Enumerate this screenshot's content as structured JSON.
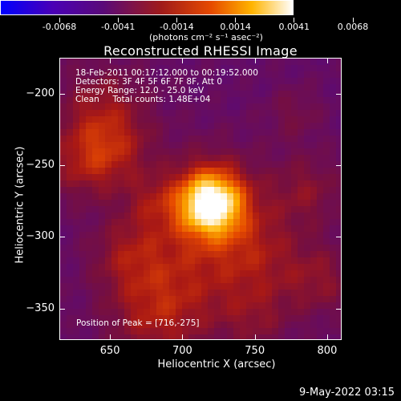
{
  "colorbar": {
    "tick_labels": [
      "-0.0068",
      "-0.0041",
      "-0.0014",
      "0.0014",
      "0.0041",
      "0.0068"
    ],
    "units_label": "(photons cm⁻² s⁻¹ asec⁻²)"
  },
  "chart_data": {
    "type": "heatmap",
    "title": "Reconstructed RHESSI Image",
    "xlabel": "Heliocentric X (arcsec)",
    "ylabel": "Heliocentric Y (arcsec)",
    "x_ticks": [
      "650",
      "700",
      "750",
      "800"
    ],
    "y_ticks": [
      "-200",
      "-250",
      "-300",
      "-350"
    ],
    "xlim": [
      615,
      810
    ],
    "ylim": [
      -372,
      -175
    ],
    "color_range": [
      -0.0068,
      0.0068
    ],
    "colormap": "blue-purple-red-yellow-white",
    "peak": [
      716,
      -275
    ],
    "annotations": [
      "18-Feb-2011 00:17:12.000 to 00:19:52.000",
      "Detectors: 3F 4F 5F 6F 7F 8F, Att 0",
      "Energy Range: 12.0 - 25.0 keV",
      "Clean     Total counts: 1.48E+04"
    ],
    "peak_text": "Position of Peak = [716,-275]"
  },
  "footer": {
    "date_stamp": "9-May-2022 03:15"
  }
}
